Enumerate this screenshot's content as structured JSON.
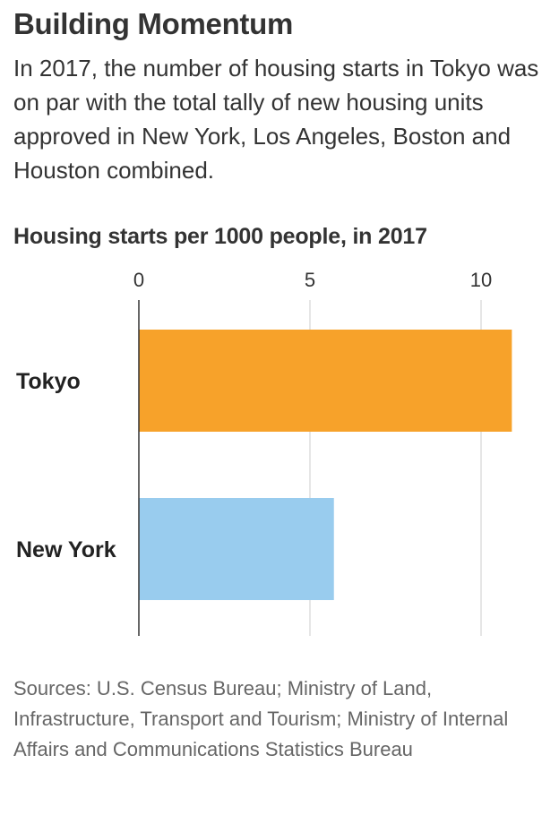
{
  "header": {
    "title": "Building Momentum",
    "subtitle": "In 2017, the number of housing starts in Tokyo was on par with the total tally of new housing units approved in New York, Los Angeles, Boston and Houston combined."
  },
  "chart_data": {
    "type": "bar",
    "orientation": "horizontal",
    "title": "Housing starts per 1000 people, in 2017",
    "categories": [
      "Tokyo",
      "New York"
    ],
    "values": [
      10.9,
      5.7
    ],
    "colors": [
      "#F7A22A",
      "#99CCEE"
    ],
    "xlim": [
      0,
      11.5
    ],
    "xticks": [
      0,
      5,
      10
    ],
    "tick_labels": [
      "0",
      "5",
      "10"
    ],
    "axis_position": "top",
    "grid": true
  },
  "colors": {
    "gridline": "#dddddd",
    "baseline": "#333333"
  },
  "footer": {
    "source": "Sources: U.S. Census Bureau; Ministry of Land, Infrastructure, Transport and Tourism; Ministry of Internal Affairs and Communications Statistics Bureau"
  }
}
